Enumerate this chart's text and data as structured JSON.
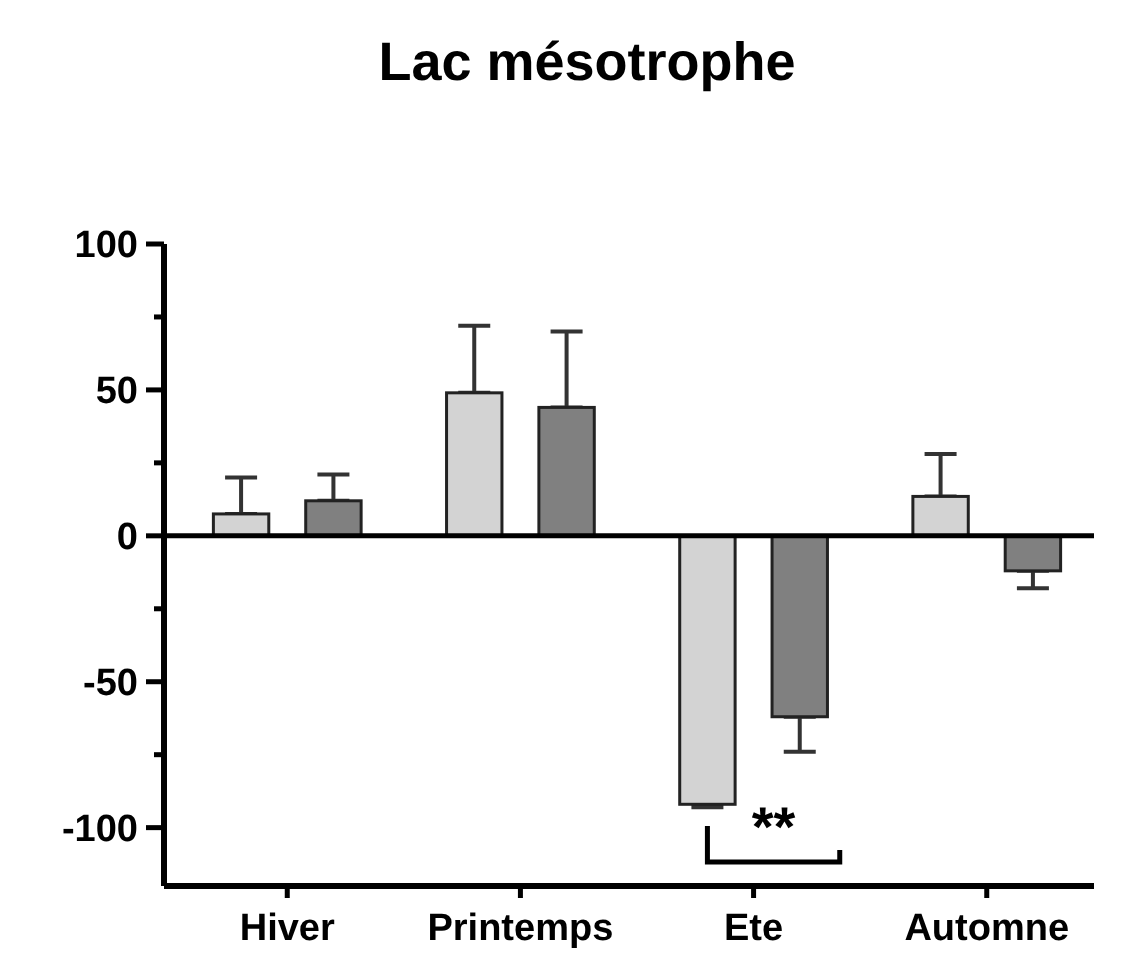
{
  "chart_data": {
    "type": "bar",
    "title": "Lac mésotrophe",
    "categories": [
      "Hiver",
      "Printemps",
      "Ete",
      "Automne"
    ],
    "series": [
      {
        "color": "#d3d3d3",
        "values": [
          7.5,
          49,
          -92,
          13.5
        ],
        "errors": [
          [
            7.5,
            20
          ],
          [
            49,
            72
          ],
          [
            -93,
            -92
          ],
          [
            13.5,
            28
          ]
        ]
      },
      {
        "color": "#808080",
        "values": [
          12,
          44,
          -62,
          -12
        ],
        "errors": [
          [
            12,
            21
          ],
          [
            44,
            70
          ],
          [
            -74,
            -62
          ],
          [
            -18,
            -12
          ]
        ]
      }
    ],
    "ylim": [
      -120,
      100
    ],
    "yticks": [
      100,
      {
        "value": 75,
        "label": null
      },
      50,
      {
        "value": 25,
        "label": null
      },
      0,
      {
        "value": -25,
        "label": null
      },
      -50,
      {
        "value": -75,
        "label": null
      },
      -100
    ],
    "annotations": [
      "**"
    ]
  }
}
